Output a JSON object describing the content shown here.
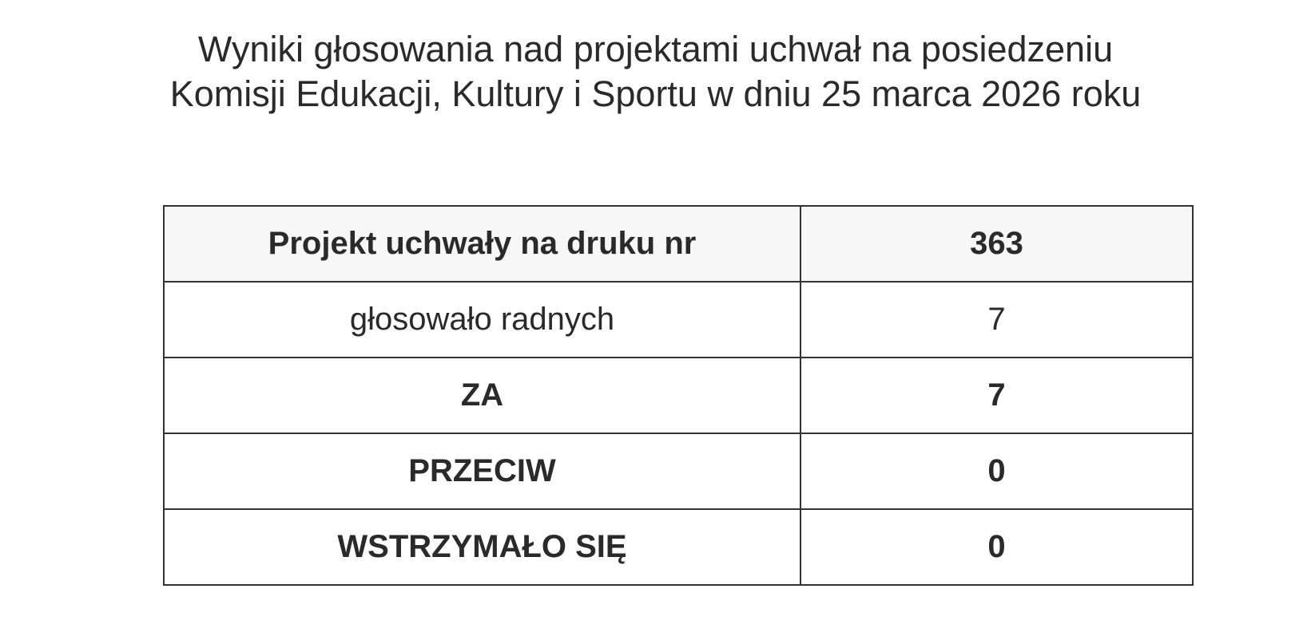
{
  "title": {
    "line1": "Wyniki głosowania nad projektami uchwał na posiedzeniu",
    "line2": "Komisji Edukacji, Kultury i Sportu w dniu 25 marca 2026 roku"
  },
  "table": {
    "rows": [
      {
        "label": "Projekt uchwały na druku nr",
        "value": "363",
        "bold": true
      },
      {
        "label": "głosowało radnych",
        "value": "7",
        "bold": false
      },
      {
        "label": "ZA",
        "value": "7",
        "bold": true
      },
      {
        "label": "PRZECIW",
        "value": "0",
        "bold": true
      },
      {
        "label": "WSTRZYMAŁO SIĘ",
        "value": "0",
        "bold": true
      }
    ]
  }
}
